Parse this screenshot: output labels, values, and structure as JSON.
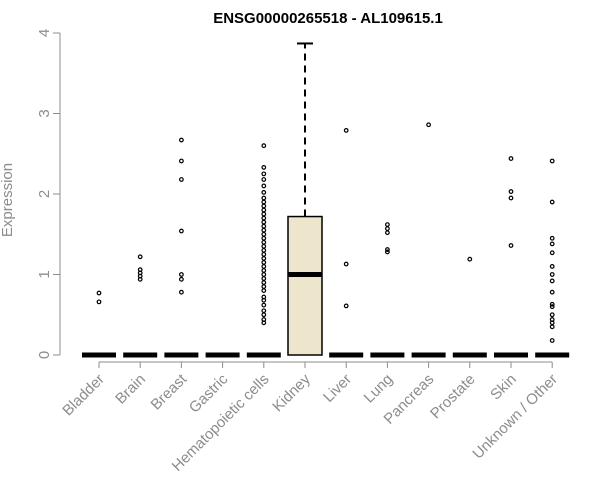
{
  "chart_data": {
    "type": "boxplot",
    "title": "ENSG00000265518 - AL109615.1",
    "xlabel": "",
    "ylabel": "Expression",
    "ylim": [
      0,
      4
    ],
    "yticks": [
      0,
      1,
      2,
      3,
      4
    ],
    "grid": false,
    "box_color": "#ede6cc",
    "categories": [
      "Bladder",
      "Brain",
      "Breast",
      "Gastric",
      "Hematopoietic cells",
      "Kidney",
      "Liver",
      "Lung",
      "Pancreas",
      "Prostate",
      "Skin",
      "Unknown / Other"
    ],
    "boxes": [
      {
        "name": "Bladder",
        "q1": 0,
        "median": 0,
        "q3": 0,
        "whisker_low": 0,
        "whisker_high": 0,
        "outliers": [
          0.66,
          0.77
        ]
      },
      {
        "name": "Brain",
        "q1": 0,
        "median": 0,
        "q3": 0,
        "whisker_low": 0,
        "whisker_high": 0,
        "outliers": [
          0.94,
          0.98,
          1.02,
          1.06,
          1.22
        ]
      },
      {
        "name": "Breast",
        "q1": 0,
        "median": 0,
        "q3": 0,
        "whisker_low": 0,
        "whisker_high": 0,
        "outliers": [
          0.78,
          0.94,
          1.0,
          1.54,
          2.18,
          2.41,
          2.67
        ]
      },
      {
        "name": "Gastric",
        "q1": 0,
        "median": 0,
        "q3": 0,
        "whisker_low": 0,
        "whisker_high": 0,
        "outliers": []
      },
      {
        "name": "Hematopoietic cells",
        "q1": 0,
        "median": 0,
        "q3": 0,
        "whisker_low": 0,
        "whisker_high": 0,
        "outliers": [
          0.4,
          0.44,
          0.5,
          0.55,
          0.62,
          0.68,
          0.72,
          0.8,
          0.85,
          0.9,
          0.95,
          1.0,
          1.05,
          1.1,
          1.15,
          1.2,
          1.25,
          1.3,
          1.35,
          1.4,
          1.45,
          1.5,
          1.55,
          1.6,
          1.65,
          1.7,
          1.75,
          1.8,
          1.85,
          1.9,
          1.95,
          2.02,
          2.1,
          2.18,
          2.25,
          2.33,
          2.6
        ]
      },
      {
        "name": "Kidney",
        "q1": 0,
        "median": 1.0,
        "q3": 1.72,
        "whisker_low": 0,
        "whisker_high": 3.87,
        "outliers": []
      },
      {
        "name": "Liver",
        "q1": 0,
        "median": 0,
        "q3": 0,
        "whisker_low": 0,
        "whisker_high": 0,
        "outliers": [
          0.61,
          1.13,
          2.79
        ]
      },
      {
        "name": "Lung",
        "q1": 0,
        "median": 0,
        "q3": 0,
        "whisker_low": 0,
        "whisker_high": 0,
        "outliers": [
          1.28,
          1.31,
          1.52,
          1.57,
          1.62
        ]
      },
      {
        "name": "Pancreas",
        "q1": 0,
        "median": 0,
        "q3": 0,
        "whisker_low": 0,
        "whisker_high": 0,
        "outliers": [
          2.86
        ]
      },
      {
        "name": "Prostate",
        "q1": 0,
        "median": 0,
        "q3": 0,
        "whisker_low": 0,
        "whisker_high": 0,
        "outliers": [
          1.19
        ]
      },
      {
        "name": "Skin",
        "q1": 0,
        "median": 0,
        "q3": 0,
        "whisker_low": 0,
        "whisker_high": 0,
        "outliers": [
          1.36,
          1.95,
          2.03,
          2.44
        ]
      },
      {
        "name": "Unknown / Other",
        "q1": 0,
        "median": 0,
        "q3": 0,
        "whisker_low": 0,
        "whisker_high": 0,
        "outliers": [
          0.18,
          0.35,
          0.4,
          0.44,
          0.5,
          0.6,
          0.63,
          0.78,
          0.92,
          1.0,
          1.1,
          1.27,
          1.38,
          1.45,
          1.9,
          2.41
        ]
      }
    ]
  }
}
